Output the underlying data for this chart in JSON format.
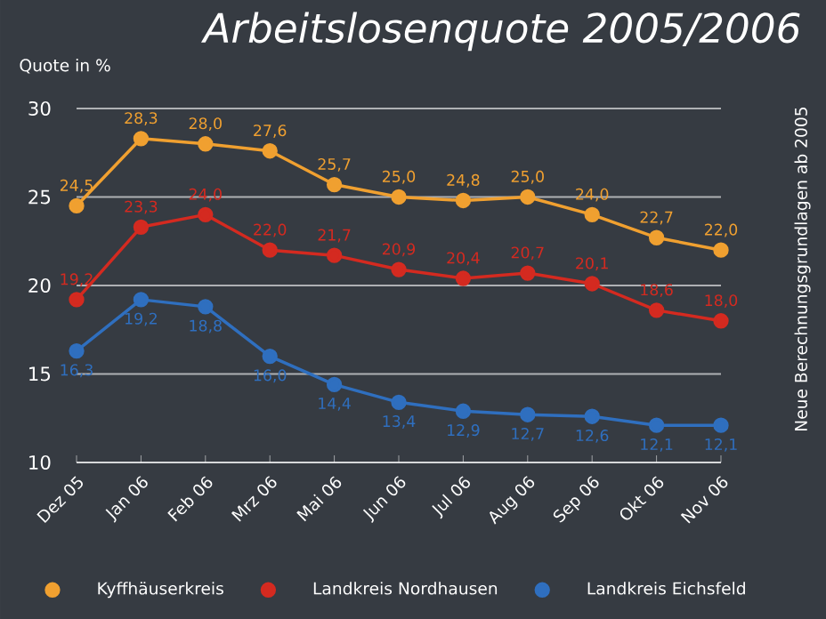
{
  "chart_data": {
    "type": "line",
    "title": "Arbeitslosenquote 2005/2006",
    "ylabel": "Quote in %",
    "annotations": [
      "Neue Berechnungsgrundlagen ab 2005"
    ],
    "categories": [
      "Dez 05",
      "Jan 06",
      "Feb 06",
      "Mrz 06",
      "Mai 06",
      "Jun 06",
      "Jul 06",
      "Aug 06",
      "Sep 06",
      "Okt 06",
      "Nov 06"
    ],
    "series": [
      {
        "name": "Kyffhäuserkreis",
        "color": "#f0a030",
        "values": [
          24.5,
          28.3,
          28.0,
          27.6,
          25.7,
          25.0,
          24.8,
          25.0,
          24.0,
          22.7,
          22.0
        ],
        "value_labels": [
          "24,5",
          "28,3",
          "28,0",
          "27,6",
          "25,7",
          "25,0",
          "24,8",
          "25,0",
          "24,0",
          "22,7",
          "22,0"
        ]
      },
      {
        "name": "Landkreis Nordhausen",
        "color": "#d42a20",
        "values": [
          19.2,
          23.3,
          24.0,
          22.0,
          21.7,
          20.9,
          20.4,
          20.7,
          20.1,
          18.6,
          18.0
        ],
        "value_labels": [
          "19,2",
          "23,3",
          "24,0",
          "22,0",
          "21,7",
          "20,9",
          "20,4",
          "20,7",
          "20,1",
          "18,6",
          "18,0"
        ]
      },
      {
        "name": "Landkreis Eichsfeld",
        "color": "#2f6fbf",
        "values": [
          16.3,
          19.2,
          18.8,
          16.0,
          14.4,
          13.4,
          12.9,
          12.7,
          12.6,
          12.1,
          12.1
        ],
        "value_labels": [
          "16,3",
          "19,2",
          "18,8",
          "16,0",
          "14,4",
          "13,4",
          "12,9",
          "12,7",
          "12,6",
          "12,1",
          "12,1"
        ]
      }
    ],
    "ylim": [
      10,
      30
    ],
    "yticks": [
      10,
      15,
      20,
      25,
      30
    ],
    "grid": "y",
    "legend": "bottom",
    "marker": "circle",
    "line_style": "solid"
  }
}
